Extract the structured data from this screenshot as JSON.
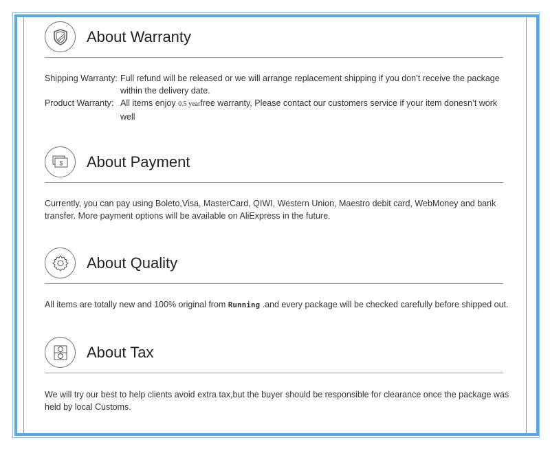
{
  "warranty": {
    "title": "About Warranty",
    "icon": "shield-icon",
    "shipping_label": "Shipping Warranty:",
    "shipping_text": "Full refund will be released or we will arrange replacement shipping if you don’t  receive the package within the delivery date.",
    "product_label": "Product  Warranty:",
    "product_pre": "All items enjoy ",
    "product_small": "0.5 year",
    "product_post": "free warranty, Please contact our customers service if your item donesn’t work well"
  },
  "payment": {
    "title": "About Payment",
    "icon": "money-bills-icon",
    "text": "Currently, you can pay using Boleto,Visa, MasterCard, QIWI, Western Union, Maestro debit card, WebMoney and bank transfer. More payment options will be available on AliExpress in the future."
  },
  "quality": {
    "title": "About Quality",
    "icon": "gear-icon",
    "pre": "All items are totally new and 100% original from ",
    "brand": "Running",
    "post": " .and every package will be checked carefully before shipped out."
  },
  "tax": {
    "title": "About Tax",
    "icon": "tax-document-icon",
    "text": "We will try our best to help clients avoid extra tax,but the buyer should be responsible for clearance  once the package was held by local Customs."
  },
  "colors": {
    "border": "#5aa5e3",
    "text": "#333333"
  }
}
